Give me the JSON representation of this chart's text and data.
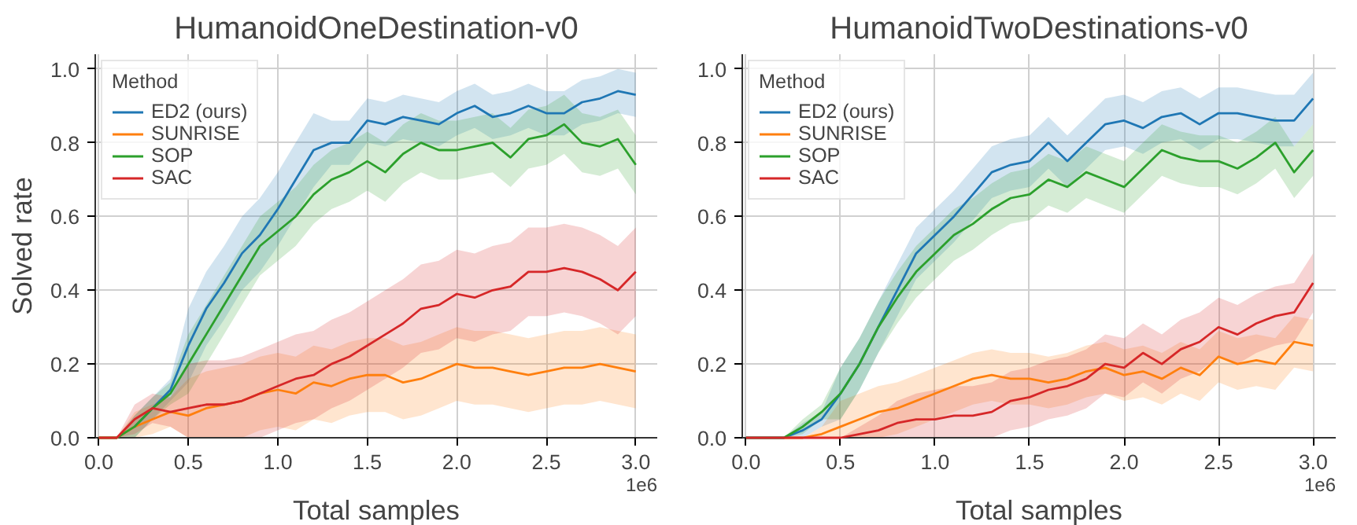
{
  "chart_data": [
    {
      "type": "line",
      "title": "HumanoidOneDestination-v0",
      "xlabel": "Total samples",
      "ylabel": "Solved rate",
      "legend_title": "Method",
      "legend": "top left",
      "grid": true,
      "annotations": [
        "1e6"
      ],
      "xlim": [
        -0.02,
        3.12
      ],
      "ylim": [
        0,
        1.04
      ],
      "xticks": [
        {
          "value": 0,
          "label": "0.0"
        },
        {
          "value": 0.5,
          "label": "0.5"
        },
        {
          "value": 1,
          "label": "1.0"
        },
        {
          "value": 1.5,
          "label": "1.5"
        },
        {
          "value": 2,
          "label": "2.0"
        },
        {
          "value": 2.5,
          "label": "2.5"
        },
        {
          "value": 3,
          "label": "3.0"
        }
      ],
      "yticks": [
        {
          "value": 0,
          "label": "0.0"
        },
        {
          "value": 0.2,
          "label": "0.2"
        },
        {
          "value": 0.4,
          "label": "0.4"
        },
        {
          "value": 0.6,
          "label": "0.6"
        },
        {
          "value": 0.8,
          "label": "0.8"
        },
        {
          "value": 1,
          "label": "1.0"
        }
      ],
      "x": [
        0,
        0.1,
        0.2,
        0.3,
        0.4,
        0.5,
        0.6,
        0.7,
        0.8,
        0.9,
        1.0,
        1.1,
        1.2,
        1.3,
        1.4,
        1.5,
        1.6,
        1.7,
        1.8,
        1.9,
        2.0,
        2.1,
        2.2,
        2.3,
        2.4,
        2.5,
        2.6,
        2.7,
        2.8,
        2.9,
        3.0
      ],
      "series": [
        {
          "name": "ED2 (ours)",
          "color": "#1f77b4",
          "values": [
            null,
            null,
            0.03,
            0.08,
            0.13,
            0.25,
            0.35,
            0.42,
            0.5,
            0.55,
            0.62,
            0.7,
            0.78,
            0.8,
            0.8,
            0.86,
            0.85,
            0.87,
            0.86,
            0.85,
            0.88,
            0.9,
            0.87,
            0.88,
            0.9,
            0.88,
            0.88,
            0.91,
            0.92,
            0.94,
            0.93
          ],
          "lower": [
            0,
            0,
            0,
            0.05,
            0.1,
            0.15,
            0.25,
            0.32,
            0.4,
            0.45,
            0.52,
            0.6,
            0.68,
            0.74,
            0.74,
            0.8,
            0.79,
            0.81,
            0.8,
            0.79,
            0.82,
            0.84,
            0.81,
            0.82,
            0.84,
            0.82,
            0.82,
            0.85,
            0.86,
            0.88,
            0.87
          ],
          "upper": [
            0,
            0,
            0.06,
            0.11,
            0.16,
            0.35,
            0.45,
            0.52,
            0.6,
            0.65,
            0.72,
            0.8,
            0.88,
            0.86,
            0.86,
            0.92,
            0.91,
            0.93,
            0.92,
            0.91,
            0.94,
            0.96,
            0.93,
            0.94,
            0.96,
            0.94,
            0.94,
            0.97,
            0.98,
            1.0,
            0.99
          ]
        },
        {
          "name": "SUNRISE",
          "color": "#ff7f0e",
          "values": [
            0,
            0,
            0.03,
            0.05,
            0.07,
            0.06,
            0.08,
            0.09,
            0.1,
            0.12,
            0.13,
            0.12,
            0.15,
            0.14,
            0.16,
            0.17,
            0.17,
            0.15,
            0.16,
            0.18,
            0.2,
            0.19,
            0.19,
            0.18,
            0.17,
            0.18,
            0.19,
            0.19,
            0.2,
            0.19,
            0.18
          ],
          "lower": [
            0,
            0,
            0,
            0.01,
            0.03,
            0,
            0,
            0,
            0,
            0.02,
            0.03,
            0.02,
            0.05,
            0.04,
            0.06,
            0.07,
            0.07,
            0.05,
            0.06,
            0.08,
            0.1,
            0.09,
            0.09,
            0.08,
            0.07,
            0.08,
            0.09,
            0.09,
            0.1,
            0.09,
            0.08
          ],
          "upper": [
            0,
            0,
            0.07,
            0.09,
            0.11,
            0.16,
            0.18,
            0.19,
            0.2,
            0.22,
            0.23,
            0.22,
            0.25,
            0.24,
            0.26,
            0.27,
            0.27,
            0.25,
            0.26,
            0.28,
            0.3,
            0.29,
            0.29,
            0.28,
            0.27,
            0.28,
            0.29,
            0.29,
            0.3,
            0.29,
            0.28
          ]
        },
        {
          "name": "SOP",
          "color": "#2ca02c",
          "values": [
            0,
            0,
            0.03,
            0.08,
            0.12,
            0.2,
            0.28,
            0.36,
            0.44,
            0.52,
            0.56,
            0.6,
            0.66,
            0.7,
            0.72,
            0.75,
            0.72,
            0.77,
            0.8,
            0.78,
            0.78,
            0.79,
            0.8,
            0.76,
            0.81,
            0.82,
            0.85,
            0.8,
            0.79,
            0.81,
            0.74
          ],
          "lower": [
            0,
            0,
            0,
            0.05,
            0.09,
            0.12,
            0.2,
            0.28,
            0.36,
            0.44,
            0.48,
            0.52,
            0.58,
            0.62,
            0.64,
            0.67,
            0.64,
            0.69,
            0.72,
            0.7,
            0.7,
            0.71,
            0.72,
            0.68,
            0.73,
            0.74,
            0.77,
            0.72,
            0.71,
            0.73,
            0.66
          ],
          "upper": [
            0,
            0,
            0.06,
            0.11,
            0.15,
            0.28,
            0.36,
            0.44,
            0.52,
            0.6,
            0.64,
            0.68,
            0.74,
            0.78,
            0.8,
            0.83,
            0.8,
            0.85,
            0.88,
            0.86,
            0.86,
            0.87,
            0.88,
            0.84,
            0.89,
            0.9,
            0.93,
            0.88,
            0.87,
            0.89,
            0.82
          ]
        },
        {
          "name": "SAC",
          "color": "#d62728",
          "values": [
            0,
            0,
            0.05,
            0.08,
            0.07,
            0.08,
            0.09,
            0.09,
            0.1,
            0.12,
            0.14,
            0.16,
            0.17,
            0.2,
            0.22,
            0.25,
            0.28,
            0.31,
            0.35,
            0.36,
            0.39,
            0.38,
            0.4,
            0.41,
            0.45,
            0.45,
            0.46,
            0.45,
            0.43,
            0.4,
            0.45
          ],
          "lower": [
            0,
            0,
            0.01,
            0.04,
            0.03,
            0,
            0,
            0,
            0,
            0,
            0.02,
            0.04,
            0.05,
            0.08,
            0.1,
            0.13,
            0.16,
            0.19,
            0.23,
            0.24,
            0.27,
            0.26,
            0.28,
            0.29,
            0.33,
            0.33,
            0.34,
            0.33,
            0.31,
            0.28,
            0.33
          ],
          "upper": [
            0,
            0,
            0.09,
            0.12,
            0.11,
            0.2,
            0.21,
            0.21,
            0.22,
            0.24,
            0.26,
            0.28,
            0.29,
            0.32,
            0.34,
            0.37,
            0.4,
            0.43,
            0.47,
            0.48,
            0.51,
            0.5,
            0.52,
            0.53,
            0.57,
            0.57,
            0.58,
            0.57,
            0.55,
            0.52,
            0.57
          ]
        }
      ]
    },
    {
      "type": "line",
      "title": "HumanoidTwoDestinations-v0",
      "xlabel": "Total samples",
      "legend_title": "Method",
      "legend": "top left",
      "grid": true,
      "annotations": [
        "1e6"
      ],
      "xlim": [
        -0.02,
        3.12
      ],
      "ylim": [
        0,
        1.04
      ],
      "xticks": [
        {
          "value": 0,
          "label": "0.0"
        },
        {
          "value": 0.5,
          "label": "0.5"
        },
        {
          "value": 1,
          "label": "1.0"
        },
        {
          "value": 1.5,
          "label": "1.5"
        },
        {
          "value": 2,
          "label": "2.0"
        },
        {
          "value": 2.5,
          "label": "2.5"
        },
        {
          "value": 3,
          "label": "3.0"
        }
      ],
      "yticks": [
        {
          "value": 0,
          "label": "0.0"
        },
        {
          "value": 0.2,
          "label": "0.2"
        },
        {
          "value": 0.4,
          "label": "0.4"
        },
        {
          "value": 0.6,
          "label": "0.6"
        },
        {
          "value": 0.8,
          "label": "0.8"
        },
        {
          "value": 1,
          "label": "1.0"
        }
      ],
      "x": [
        0,
        0.1,
        0.2,
        0.3,
        0.4,
        0.5,
        0.6,
        0.7,
        0.8,
        0.9,
        1.0,
        1.1,
        1.2,
        1.3,
        1.4,
        1.5,
        1.6,
        1.7,
        1.8,
        1.9,
        2.0,
        2.1,
        2.2,
        2.3,
        2.4,
        2.5,
        2.6,
        2.7,
        2.8,
        2.9,
        3.0
      ],
      "series": [
        {
          "name": "ED2 (ours)",
          "color": "#1f77b4",
          "values": [
            0,
            0,
            0,
            0.02,
            0.05,
            0.12,
            0.2,
            0.3,
            0.4,
            0.5,
            0.55,
            0.6,
            0.66,
            0.72,
            0.74,
            0.75,
            0.8,
            0.75,
            0.8,
            0.85,
            0.86,
            0.84,
            0.87,
            0.88,
            0.85,
            0.88,
            0.88,
            0.87,
            0.86,
            0.86,
            0.92
          ],
          "lower": [
            0,
            0,
            0,
            0,
            0.03,
            0.05,
            0.13,
            0.23,
            0.33,
            0.43,
            0.48,
            0.53,
            0.59,
            0.65,
            0.67,
            0.68,
            0.73,
            0.68,
            0.73,
            0.78,
            0.79,
            0.77,
            0.8,
            0.81,
            0.78,
            0.81,
            0.81,
            0.8,
            0.79,
            0.79,
            0.85
          ],
          "upper": [
            0,
            0,
            0,
            0.04,
            0.07,
            0.19,
            0.27,
            0.37,
            0.47,
            0.57,
            0.62,
            0.67,
            0.73,
            0.79,
            0.81,
            0.82,
            0.87,
            0.82,
            0.87,
            0.92,
            0.93,
            0.91,
            0.94,
            0.95,
            0.92,
            0.95,
            0.95,
            0.94,
            0.93,
            0.93,
            0.99
          ]
        },
        {
          "name": "SUNRISE",
          "color": "#ff7f0e",
          "values": [
            null,
            null,
            0,
            0,
            0.01,
            0.03,
            0.05,
            0.07,
            0.08,
            0.1,
            0.12,
            0.14,
            0.16,
            0.17,
            0.16,
            0.16,
            0.15,
            0.16,
            0.18,
            0.19,
            0.17,
            0.18,
            0.16,
            0.19,
            0.17,
            0.22,
            0.2,
            0.21,
            0.2,
            0.26,
            0.25
          ],
          "lower": [
            0,
            0,
            0,
            0,
            0,
            0,
            0,
            0,
            0.01,
            0.03,
            0.05,
            0.07,
            0.09,
            0.1,
            0.09,
            0.09,
            0.08,
            0.09,
            0.11,
            0.12,
            0.1,
            0.11,
            0.09,
            0.12,
            0.1,
            0.15,
            0.13,
            0.14,
            0.13,
            0.19,
            0.18
          ],
          "upper": [
            0,
            0,
            0,
            0,
            0.03,
            0.1,
            0.12,
            0.14,
            0.15,
            0.17,
            0.19,
            0.21,
            0.23,
            0.24,
            0.23,
            0.23,
            0.22,
            0.23,
            0.25,
            0.26,
            0.24,
            0.25,
            0.23,
            0.26,
            0.24,
            0.29,
            0.27,
            0.28,
            0.27,
            0.33,
            0.32
          ]
        },
        {
          "name": "SOP",
          "color": "#2ca02c",
          "values": [
            0,
            0,
            0,
            0.03,
            0.07,
            0.12,
            0.2,
            0.3,
            0.38,
            0.45,
            0.5,
            0.55,
            0.58,
            0.62,
            0.65,
            0.66,
            0.7,
            0.68,
            0.72,
            0.7,
            0.68,
            0.73,
            0.78,
            0.76,
            0.75,
            0.75,
            0.73,
            0.76,
            0.8,
            0.72,
            0.78
          ],
          "lower": [
            0,
            0,
            0,
            0.01,
            0.05,
            0.05,
            0.13,
            0.23,
            0.31,
            0.38,
            0.43,
            0.48,
            0.51,
            0.55,
            0.58,
            0.59,
            0.63,
            0.61,
            0.65,
            0.63,
            0.61,
            0.66,
            0.71,
            0.69,
            0.68,
            0.68,
            0.66,
            0.69,
            0.73,
            0.65,
            0.71
          ],
          "upper": [
            0,
            0,
            0,
            0.05,
            0.09,
            0.19,
            0.27,
            0.37,
            0.45,
            0.52,
            0.57,
            0.62,
            0.65,
            0.69,
            0.72,
            0.73,
            0.77,
            0.75,
            0.79,
            0.77,
            0.75,
            0.8,
            0.85,
            0.83,
            0.82,
            0.82,
            0.8,
            0.83,
            0.87,
            0.79,
            0.85
          ]
        },
        {
          "name": "SAC",
          "color": "#d62728",
          "values": [
            0,
            0,
            0,
            0,
            0,
            0,
            0.01,
            0.02,
            0.04,
            0.05,
            0.05,
            0.06,
            0.06,
            0.07,
            0.1,
            0.11,
            0.13,
            0.14,
            0.16,
            0.2,
            0.19,
            0.23,
            0.2,
            0.24,
            0.26,
            0.3,
            0.28,
            0.31,
            0.33,
            0.34,
            0.42
          ],
          "lower": [
            0,
            0,
            0,
            0,
            0,
            0,
            0,
            0,
            0,
            0,
            0,
            0,
            0,
            0,
            0.02,
            0.03,
            0.05,
            0.06,
            0.08,
            0.12,
            0.11,
            0.15,
            0.12,
            0.16,
            0.18,
            0.22,
            0.2,
            0.23,
            0.25,
            0.26,
            0.34
          ],
          "upper": [
            0,
            0,
            0,
            0,
            0,
            0,
            0.03,
            0.06,
            0.1,
            0.12,
            0.13,
            0.14,
            0.14,
            0.15,
            0.18,
            0.19,
            0.21,
            0.22,
            0.24,
            0.28,
            0.27,
            0.31,
            0.28,
            0.32,
            0.34,
            0.38,
            0.36,
            0.39,
            0.41,
            0.42,
            0.5
          ]
        }
      ]
    }
  ]
}
